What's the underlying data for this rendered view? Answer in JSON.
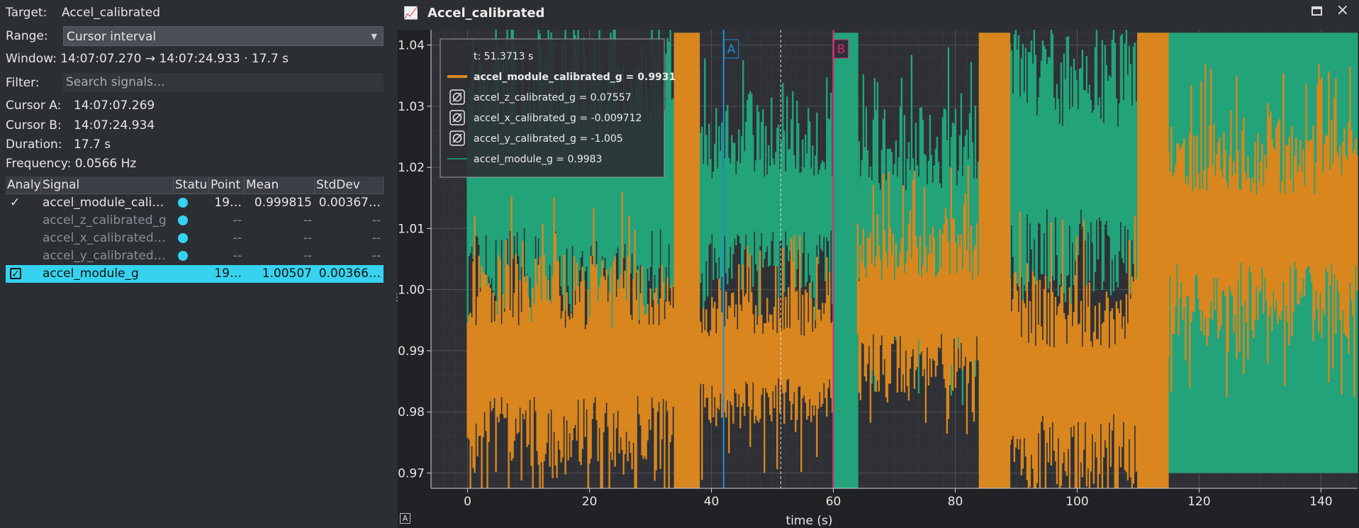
{
  "panel": {
    "target_label": "Target:",
    "target_value": "Accel_calibrated",
    "range_label": "Range:",
    "range_value": "Cursor interval",
    "window_text": "Window: 14:07:07.270 → 14:07:24.933  ·  17.7 s",
    "filter_label": "Filter:",
    "filter_placeholder": "Search signals…",
    "cursor_a_label": "Cursor A:",
    "cursor_a_value": "14:07:07.269",
    "cursor_b_label": "Cursor B:",
    "cursor_b_value": "14:07:24.934",
    "duration_label": "Duration:",
    "duration_value": "17.7 s",
    "frequency_label": "Frequency:",
    "frequency_value": "0.0566 Hz"
  },
  "table": {
    "headers": [
      "Analy",
      "Signal",
      "Statu",
      "Point",
      "Mean",
      "StdDev"
    ],
    "rows": [
      {
        "check": "✓",
        "signal": "accel_module_cali…",
        "status": "dot",
        "points": "19…",
        "mean": "0.999815",
        "std": "0.00367…",
        "dim": false,
        "selected": false
      },
      {
        "check": "",
        "signal": "accel_z_calibrated_g",
        "status": "dot",
        "points": "--",
        "mean": "--",
        "std": "--",
        "dim": true,
        "selected": false
      },
      {
        "check": "",
        "signal": "accel_x_calibrated…",
        "status": "dot",
        "points": "--",
        "mean": "--",
        "std": "--",
        "dim": true,
        "selected": false
      },
      {
        "check": "",
        "signal": "accel_y_calibrated…",
        "status": "dot",
        "points": "--",
        "mean": "--",
        "std": "--",
        "dim": true,
        "selected": false
      },
      {
        "check": "✓",
        "signal": "accel_module_g",
        "status": "",
        "points": "19…",
        "mean": "1.00507",
        "std": "0.00366…",
        "dim": false,
        "selected": true
      }
    ]
  },
  "plot_window": {
    "title": "Accel_calibrated",
    "title_icon": "chart-icon",
    "reset_label": "A"
  },
  "legend": {
    "time": "t: 51.3713 s",
    "entries": [
      {
        "text": "accel_module_calibrated_g = 0.9931",
        "bold": true,
        "kind": "line",
        "color": "#d9861f"
      },
      {
        "text": "accel_z_calibrated_g = 0.07557",
        "bold": false,
        "kind": "hidden"
      },
      {
        "text": "accel_x_calibrated_g = -0.009712",
        "bold": false,
        "kind": "hidden"
      },
      {
        "text": "accel_y_calibrated_g = -1.005",
        "bold": false,
        "kind": "hidden"
      },
      {
        "text": "accel_module_g = 0.9983",
        "bold": false,
        "kind": "line-thin",
        "color": "#22a37a"
      }
    ]
  },
  "chart_data": {
    "type": "line",
    "xlabel": "time (s)",
    "ylabel": "",
    "xlim": [
      -6,
      146
    ],
    "ylim": [
      0.9675,
      1.0425
    ],
    "xticks": [
      0,
      20,
      40,
      60,
      80,
      100,
      120,
      140
    ],
    "yticks": [
      0.97,
      0.98,
      0.99,
      1.0,
      1.01,
      1.02,
      1.03,
      1.04
    ],
    "ytick_labels": [
      "0.97",
      "0.98",
      "0.99",
      "1.00",
      "1.01",
      "1.02",
      "1.03",
      "1.04"
    ],
    "grid": true,
    "cursor_a": {
      "label": "A",
      "x": 42,
      "color": "#1f8fd6"
    },
    "cursor_b": {
      "label": "B",
      "x": 60,
      "color": "#e0287a"
    },
    "hover_x": 51.37,
    "series": [
      {
        "name": "accel_module_calibrated_g",
        "color": "#d9861f",
        "segments": [
          {
            "x": [
              0,
              34
            ],
            "lo": 0.97,
            "hi": 1.006
          },
          {
            "x": [
              34,
              38
            ],
            "lo": 0.967,
            "hi": 1.042
          },
          {
            "x": [
              38,
              60
            ],
            "lo": 0.978,
            "hi": 1.0
          },
          {
            "x": [
              64,
              84
            ],
            "lo": 0.983,
            "hi": 1.011
          },
          {
            "x": [
              84,
              89
            ],
            "lo": 0.967,
            "hi": 1.042
          },
          {
            "x": [
              89,
              110
            ],
            "lo": 0.967,
            "hi": 1.003
          },
          {
            "x": [
              110,
              115
            ],
            "lo": 0.967,
            "hi": 1.042
          },
          {
            "x": [
              115,
              146
            ],
            "lo": 0.992,
            "hi": 1.028
          }
        ]
      },
      {
        "name": "accel_module_g",
        "color": "#22a37a",
        "segments": [
          {
            "x": [
              0,
              34
            ],
            "lo": 0.993,
            "hi": 1.042
          },
          {
            "x": [
              34,
              38
            ],
            "lo": 0.967,
            "hi": 1.042
          },
          {
            "x": [
              38,
              60
            ],
            "lo": 1.0,
            "hi": 1.028
          },
          {
            "x": [
              60,
              64
            ],
            "lo": 0.967,
            "hi": 1.042
          },
          {
            "x": [
              64,
              84
            ],
            "lo": 0.99,
            "hi": 1.03
          },
          {
            "x": [
              84,
              89
            ],
            "lo": 0.967,
            "hi": 1.042
          },
          {
            "x": [
              89,
              110
            ],
            "lo": 0.998,
            "hi": 1.042
          },
          {
            "x": [
              110,
              115
            ],
            "lo": 0.967,
            "hi": 1.042
          },
          {
            "x": [
              115,
              146
            ],
            "lo": 0.97,
            "hi": 1.042
          }
        ]
      }
    ]
  }
}
